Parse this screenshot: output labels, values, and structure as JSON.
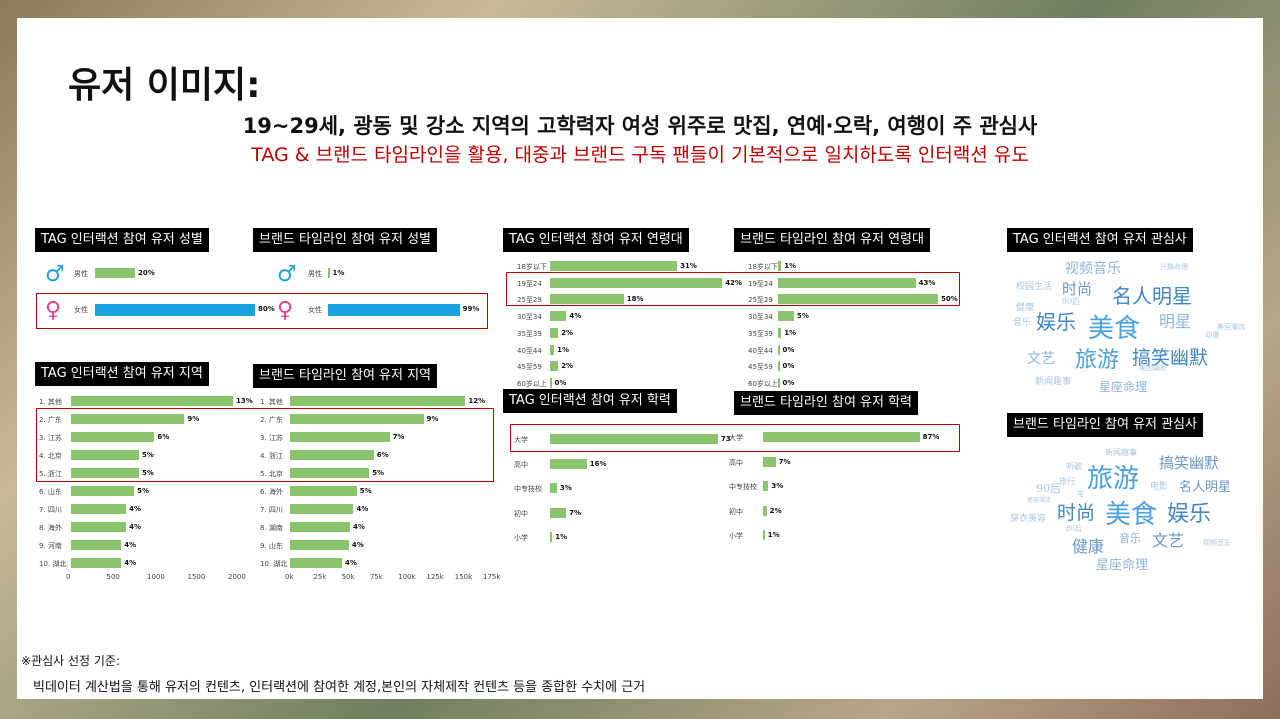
{
  "title": "유저 이미지:",
  "subtitle1": "19~29세, 광동 및 강소 지역의 고학력자 여성 위주로 맛집, 연예·오락, 여행이 주 관심사",
  "subtitle2": "TAG & 브랜드 타임라인을 활용, 대중과 브랜드 구독 팬들이 기본적으로 일치하도록 인터랙션 유도",
  "panels": {
    "tag_gender": "TAG 인터랙션 참여 유저 성별",
    "brand_gender": "브랜드 타임라인 참여 유저 성별",
    "tag_region": "TAG 인터랙션 참여 유저 지역",
    "brand_region": "브랜드 타임라인 참여 유저 지역",
    "tag_age": "TAG 인터랙션 참여 유저 연령대",
    "brand_age": "브랜드 타임라인 참여 유저 연령대",
    "tag_edu": "TAG 인터랙션 참여 유저 학력",
    "brand_edu": "브랜드 타임라인 참여 유저 학력",
    "tag_interest": "TAG 인터랙션 참여 유저 관심사",
    "brand_interest": "브랜드 타임라인 참여 유저 관심사"
  },
  "chart_data": [
    {
      "type": "bar",
      "id": "tag_gender",
      "categories": [
        "男性",
        "女性"
      ],
      "values": [
        20,
        80
      ],
      "labels": [
        "20%",
        "80%"
      ],
      "colors": [
        "#8ac46d",
        "#1aa3e0"
      ]
    },
    {
      "type": "bar",
      "id": "brand_gender",
      "categories": [
        "男性",
        "女性"
      ],
      "values": [
        1,
        99
      ],
      "labels": [
        "1%",
        "99%"
      ],
      "colors": [
        "#8ac46d",
        "#1aa3e0"
      ]
    },
    {
      "type": "bar",
      "id": "tag_age",
      "categories": [
        "18岁以下",
        "19至24",
        "25至29",
        "30至34",
        "35至39",
        "40至44",
        "45至59",
        "60岁以上"
      ],
      "values": [
        31,
        42,
        18,
        4,
        2,
        1,
        2,
        0
      ],
      "labels": [
        "31%",
        "42%",
        "18%",
        "4%",
        "2%",
        "1%",
        "2%",
        "0%"
      ]
    },
    {
      "type": "bar",
      "id": "brand_age",
      "categories": [
        "18岁以下",
        "19至24",
        "25至29",
        "30至34",
        "35至39",
        "40至44",
        "45至59",
        "60岁以上"
      ],
      "values": [
        1,
        43,
        50,
        5,
        1,
        0,
        0,
        0
      ],
      "labels": [
        "1%",
        "43%",
        "50%",
        "5%",
        "1%",
        "0%",
        "0%",
        "0%"
      ]
    },
    {
      "type": "bar",
      "id": "tag_region",
      "categories": [
        "1. 其他",
        "2. 广东",
        "3. 江苏",
        "4. 北京",
        "5. 浙江",
        "6. 山东",
        "7. 四川",
        "8. 海外",
        "9. 河南",
        "10. 湖北"
      ],
      "values": [
        2000,
        1400,
        1030,
        840,
        840,
        780,
        680,
        680,
        620,
        620
      ],
      "labels": [
        "13%",
        "9%",
        "6%",
        "5%",
        "5%",
        "5%",
        "4%",
        "4%",
        "4%",
        "4%"
      ],
      "xticks": [
        "0",
        "500",
        "1000",
        "1500",
        "2000"
      ],
      "xlim": [
        0,
        2000
      ]
    },
    {
      "type": "bar",
      "id": "brand_region",
      "categories": [
        "1. 其他",
        "2. 广东",
        "3. 江苏",
        "4. 浙江",
        "5. 北京",
        "6. 海外",
        "7. 四川",
        "8. 湖南",
        "9. 山东",
        "10. 湖北"
      ],
      "values": [
        155000,
        118000,
        88000,
        74000,
        70000,
        59000,
        56000,
        53000,
        52000,
        46000
      ],
      "labels": [
        "12%",
        "9%",
        "7%",
        "6%",
        "5%",
        "5%",
        "4%",
        "4%",
        "4%",
        "4%"
      ],
      "xticks": [
        "0k",
        "25k",
        "50k",
        "75k",
        "100k",
        "125k",
        "150k",
        "175k"
      ],
      "xlim": [
        0,
        175000
      ]
    },
    {
      "type": "bar",
      "id": "tag_edu",
      "categories": [
        "大学",
        "高中",
        "中专技校",
        "初中",
        "小学"
      ],
      "values": [
        73,
        16,
        3,
        7,
        1
      ],
      "labels": [
        "73",
        "16%",
        "3%",
        "7%",
        "1%"
      ]
    },
    {
      "type": "bar",
      "id": "brand_edu",
      "categories": [
        "大学",
        "高中",
        "中专技校",
        "初中",
        "小学"
      ],
      "values": [
        87,
        7,
        3,
        2,
        1
      ],
      "labels": [
        "87%",
        "7%",
        "3%",
        "2%",
        "1%"
      ]
    }
  ],
  "tag_cloud": [
    {
      "t": "视频音乐",
      "c": "#8fb6da",
      "s": 14
    },
    {
      "t": "兴趣命理",
      "c": "#a9c6e2",
      "s": 7
    },
    {
      "t": "校园生活",
      "c": "#a9c6e2",
      "s": 9
    },
    {
      "t": "时尚",
      "c": "#6a97c6",
      "s": 15
    },
    {
      "t": "名人明星",
      "c": "#3f86c6",
      "s": 20
    },
    {
      "t": "健康",
      "c": "#a9c6e2",
      "s": 9
    },
    {
      "t": "90后",
      "c": "#a9c6e2",
      "s": 8
    },
    {
      "t": "音乐",
      "c": "#a9c6e2",
      "s": 9
    },
    {
      "t": "娱乐",
      "c": "#3f86c6",
      "s": 20
    },
    {
      "t": "美食",
      "c": "#4aa0e0",
      "s": 26
    },
    {
      "t": "明星",
      "c": "#8fb6da",
      "s": 16
    },
    {
      "t": "美容潮流",
      "c": "#a9c6e2",
      "s": 7
    },
    {
      "t": "动漫",
      "c": "#a9c6e2",
      "s": 7
    },
    {
      "t": "文艺",
      "c": "#8fb6da",
      "s": 14
    },
    {
      "t": "旅游",
      "c": "#4aa0e0",
      "s": 22
    },
    {
      "t": "搞笑幽默",
      "c": "#3f86c6",
      "s": 19
    },
    {
      "t": "美团摄影",
      "c": "#a9c6e2",
      "s": 7
    },
    {
      "t": "新闻趣事",
      "c": "#a9c6e2",
      "s": 9
    },
    {
      "t": "星座命理",
      "c": "#8fb6da",
      "s": 12
    }
  ],
  "brand_cloud": [
    {
      "t": "新闻趣事",
      "c": "#a9c6e2",
      "s": 8
    },
    {
      "t": "搞笑幽默",
      "c": "#6a97c6",
      "s": 15
    },
    {
      "t": "听歌",
      "c": "#a9c6e2",
      "s": 8
    },
    {
      "t": "旅游",
      "c": "#4aa0e0",
      "s": 26
    },
    {
      "t": "旅行",
      "c": "#a9c6e2",
      "s": 8
    },
    {
      "t": "电影",
      "c": "#a9c6e2",
      "s": 9
    },
    {
      "t": "名人明星",
      "c": "#6a97c6",
      "s": 13
    },
    {
      "t": "90后",
      "c": "#a9c6e2",
      "s": 11
    },
    {
      "t": "宅",
      "c": "#a9c6e2",
      "s": 7
    },
    {
      "t": "美容潮流",
      "c": "#a9c6e2",
      "s": 6
    },
    {
      "t": "时尚",
      "c": "#3f86c6",
      "s": 19
    },
    {
      "t": "美食",
      "c": "#4aa0e0",
      "s": 26
    },
    {
      "t": "娱乐",
      "c": "#3f86c6",
      "s": 22
    },
    {
      "t": "穿衣美容",
      "c": "#a9c6e2",
      "s": 9
    },
    {
      "t": "80后",
      "c": "#a9c6e2",
      "s": 7
    },
    {
      "t": "健康",
      "c": "#6a97c6",
      "s": 16
    },
    {
      "t": "音乐",
      "c": "#8fb6da",
      "s": 11
    },
    {
      "t": "文艺",
      "c": "#6a97c6",
      "s": 16
    },
    {
      "t": "视频音乐",
      "c": "#a9c6e2",
      "s": 7
    },
    {
      "t": "星座命理",
      "c": "#8fb6da",
      "s": 13
    }
  ],
  "footnote_title": "※관심사 선정 기준:",
  "footnote_text": "빅데이터 계산법을 통해 유저의 컨텐츠, 인터랙션에 참여한 계정,본인의 자체제작 컨텐츠 등을 종합한 수치에 근거",
  "icons": {
    "male": "♂",
    "female": "♀"
  },
  "colors": {
    "accent_red": "#c00000",
    "bar_green": "#8ac46d",
    "bar_blue": "#1aa3e0"
  }
}
